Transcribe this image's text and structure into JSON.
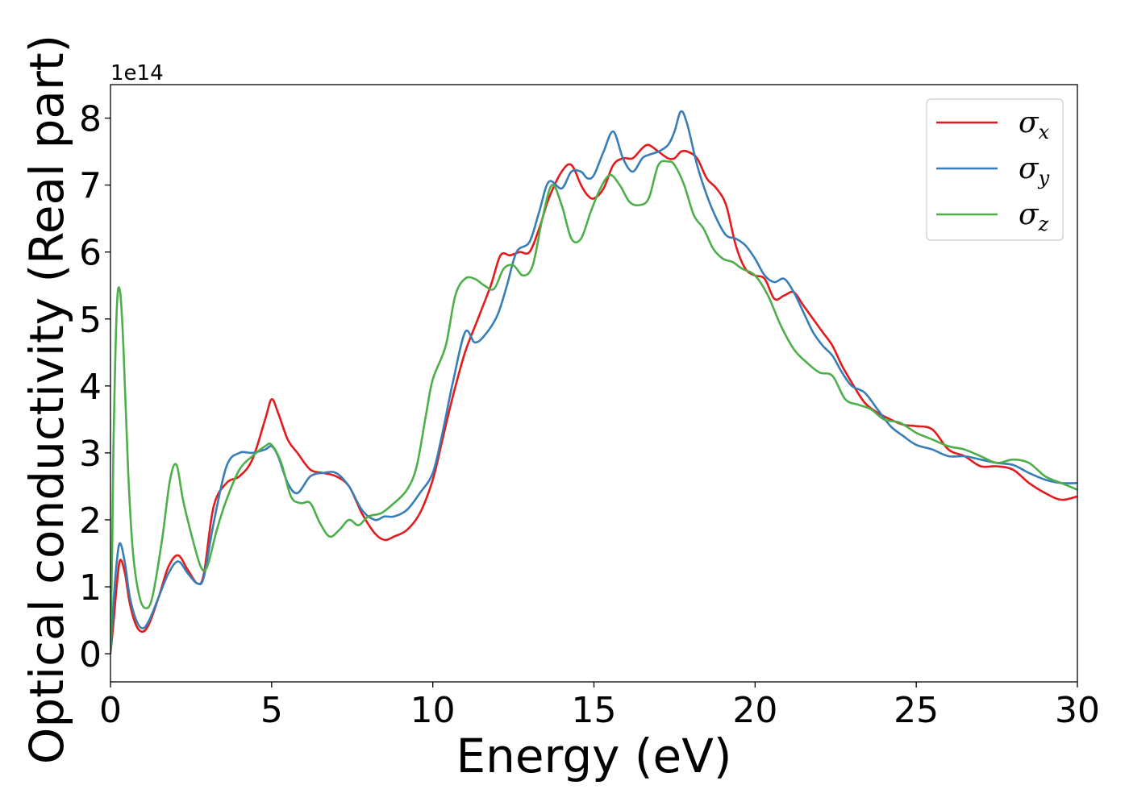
{
  "chart_data": {
    "type": "line",
    "title": "",
    "xlabel": "Energy (eV)",
    "ylabel": "Optical conductivity (Real part)",
    "y_offset_label": "1e14",
    "y_unit_scale": 100000000000000.0,
    "xlim": [
      0,
      30
    ],
    "ylim": [
      -0.42,
      8.5
    ],
    "xticks": [
      0,
      5,
      10,
      15,
      20,
      25,
      30
    ],
    "yticks": [
      0,
      1,
      2,
      3,
      4,
      5,
      6,
      7,
      8
    ],
    "grid": false,
    "legend_position": "top-right",
    "series": [
      {
        "name": "σ",
        "subscript": "x",
        "color": "#e41a1c",
        "x": [
          0,
          0.1,
          0.2,
          0.3,
          0.45,
          0.6,
          0.8,
          1.0,
          1.2,
          1.5,
          1.8,
          2.1,
          2.4,
          2.7,
          2.9,
          3.2,
          3.6,
          4.0,
          4.4,
          4.8,
          5.0,
          5.2,
          5.5,
          5.8,
          6.2,
          6.6,
          7.0,
          7.4,
          7.8,
          8.2,
          8.5,
          8.8,
          9.2,
          9.6,
          10.0,
          10.3,
          10.6,
          11.0,
          11.4,
          11.8,
          12.1,
          12.4,
          12.7,
          13.0,
          13.3,
          13.6,
          14.0,
          14.3,
          14.6,
          14.8,
          15.0,
          15.3,
          15.6,
          15.9,
          16.2,
          16.5,
          16.7,
          17.0,
          17.3,
          17.5,
          17.7,
          17.9,
          18.2,
          18.5,
          18.8,
          19.1,
          19.4,
          19.7,
          20.0,
          20.3,
          20.6,
          20.9,
          21.2,
          21.5,
          21.8,
          22.1,
          22.4,
          22.7,
          23.0,
          23.4,
          23.8,
          24.2,
          24.6,
          25.0,
          25.5,
          26.0,
          26.5,
          27.0,
          27.5,
          28.0,
          28.5,
          29.0,
          29.5,
          30.0
        ],
        "y": [
          0,
          0.5,
          1.05,
          1.4,
          1.2,
          0.75,
          0.42,
          0.33,
          0.45,
          0.85,
          1.3,
          1.47,
          1.25,
          1.05,
          1.2,
          2.2,
          2.55,
          2.65,
          2.9,
          3.5,
          3.8,
          3.6,
          3.2,
          3.0,
          2.75,
          2.7,
          2.65,
          2.5,
          2.1,
          1.8,
          1.7,
          1.75,
          1.85,
          2.1,
          2.6,
          3.2,
          3.8,
          4.5,
          5.0,
          5.5,
          5.95,
          5.95,
          6.0,
          6.0,
          6.35,
          6.8,
          7.2,
          7.3,
          7.0,
          6.85,
          6.8,
          6.95,
          7.3,
          7.4,
          7.4,
          7.55,
          7.6,
          7.5,
          7.4,
          7.4,
          7.5,
          7.5,
          7.4,
          7.1,
          6.95,
          6.7,
          6.1,
          5.75,
          5.65,
          5.6,
          5.3,
          5.35,
          5.4,
          5.2,
          5.0,
          4.8,
          4.6,
          4.3,
          4.05,
          3.75,
          3.6,
          3.5,
          3.42,
          3.4,
          3.35,
          3.05,
          2.95,
          2.8,
          2.8,
          2.75,
          2.55,
          2.4,
          2.3,
          2.35
        ]
      },
      {
        "name": "σ",
        "subscript": "y",
        "color": "#377eb8",
        "x": [
          0,
          0.1,
          0.2,
          0.3,
          0.45,
          0.6,
          0.8,
          1.0,
          1.2,
          1.5,
          1.8,
          2.1,
          2.4,
          2.7,
          2.9,
          3.2,
          3.6,
          4.0,
          4.4,
          4.8,
          5.0,
          5.2,
          5.5,
          5.8,
          6.2,
          6.6,
          7.0,
          7.4,
          7.8,
          8.2,
          8.5,
          8.8,
          9.2,
          9.6,
          10.0,
          10.3,
          10.6,
          11.0,
          11.3,
          11.6,
          12.0,
          12.3,
          12.6,
          13.0,
          13.3,
          13.6,
          14.0,
          14.3,
          14.6,
          14.8,
          15.0,
          15.3,
          15.6,
          15.9,
          16.2,
          16.5,
          16.7,
          17.0,
          17.3,
          17.5,
          17.7,
          17.9,
          18.2,
          18.5,
          18.8,
          19.1,
          19.4,
          19.7,
          20.0,
          20.3,
          20.6,
          20.9,
          21.2,
          21.5,
          21.8,
          22.1,
          22.4,
          22.7,
          23.0,
          23.4,
          23.8,
          24.2,
          24.6,
          25.0,
          25.5,
          26.0,
          26.5,
          27.0,
          27.5,
          28.0,
          28.5,
          29.0,
          29.5,
          30.0
        ],
        "y": [
          0,
          0.8,
          1.4,
          1.65,
          1.35,
          0.85,
          0.5,
          0.38,
          0.5,
          0.85,
          1.2,
          1.38,
          1.2,
          1.05,
          1.15,
          1.95,
          2.8,
          3.0,
          3.0,
          3.05,
          3.1,
          2.95,
          2.55,
          2.4,
          2.65,
          2.7,
          2.7,
          2.5,
          2.15,
          2.0,
          2.05,
          2.05,
          2.15,
          2.4,
          2.7,
          3.3,
          4.0,
          4.8,
          4.65,
          4.75,
          5.05,
          5.5,
          6.0,
          6.15,
          6.6,
          7.05,
          6.95,
          7.2,
          7.2,
          7.1,
          7.15,
          7.5,
          7.8,
          7.4,
          7.2,
          7.4,
          7.45,
          7.5,
          7.6,
          7.8,
          8.1,
          7.9,
          7.3,
          6.85,
          6.5,
          6.25,
          6.2,
          6.1,
          5.9,
          5.65,
          5.55,
          5.6,
          5.4,
          5.1,
          4.8,
          4.6,
          4.45,
          4.2,
          4.0,
          3.9,
          3.65,
          3.4,
          3.25,
          3.12,
          3.05,
          2.95,
          2.95,
          2.9,
          2.85,
          2.82,
          2.7,
          2.6,
          2.55,
          2.55
        ]
      },
      {
        "name": "σ",
        "subscript": "z",
        "color": "#4daf4a",
        "x": [
          0,
          0.05,
          0.1,
          0.2,
          0.3,
          0.4,
          0.55,
          0.7,
          0.9,
          1.1,
          1.3,
          1.6,
          1.85,
          2.05,
          2.25,
          2.5,
          2.8,
          3.0,
          3.3,
          3.6,
          4.0,
          4.4,
          4.8,
          5.0,
          5.3,
          5.6,
          5.9,
          6.2,
          6.5,
          6.8,
          7.1,
          7.4,
          7.7,
          8.0,
          8.4,
          8.8,
          9.2,
          9.5,
          9.8,
          10.0,
          10.4,
          10.7,
          11.0,
          11.3,
          11.6,
          11.9,
          12.2,
          12.5,
          12.8,
          13.1,
          13.4,
          13.7,
          14.0,
          14.3,
          14.6,
          14.9,
          15.2,
          15.5,
          15.8,
          16.1,
          16.4,
          16.7,
          17.0,
          17.3,
          17.5,
          17.8,
          18.1,
          18.4,
          18.7,
          19.0,
          19.3,
          19.6,
          20.0,
          20.4,
          20.8,
          21.2,
          21.6,
          22.0,
          22.4,
          22.8,
          23.2,
          23.6,
          24.0,
          24.5,
          25.0,
          25.5,
          26.0,
          26.5,
          27.0,
          27.5,
          28.0,
          28.5,
          29.0,
          29.5,
          30.0
        ],
        "y": [
          0,
          1.5,
          3.3,
          5.2,
          5.4,
          4.6,
          2.7,
          1.5,
          0.85,
          0.68,
          0.85,
          1.7,
          2.6,
          2.82,
          2.3,
          1.8,
          1.3,
          1.3,
          1.85,
          2.3,
          2.75,
          2.95,
          3.1,
          3.12,
          2.85,
          2.35,
          2.25,
          2.25,
          1.95,
          1.75,
          1.85,
          2.0,
          1.92,
          2.05,
          2.1,
          2.25,
          2.45,
          2.8,
          3.6,
          4.1,
          4.6,
          5.35,
          5.6,
          5.6,
          5.5,
          5.45,
          5.75,
          5.8,
          5.65,
          5.8,
          6.5,
          7.0,
          6.7,
          6.2,
          6.2,
          6.6,
          6.95,
          7.15,
          7.0,
          6.75,
          6.7,
          6.8,
          7.3,
          7.35,
          7.3,
          7.0,
          6.55,
          6.35,
          6.05,
          5.9,
          5.85,
          5.75,
          5.65,
          5.35,
          4.9,
          4.55,
          4.35,
          4.2,
          4.15,
          3.8,
          3.72,
          3.65,
          3.5,
          3.45,
          3.3,
          3.2,
          3.1,
          3.05,
          2.95,
          2.85,
          2.9,
          2.85,
          2.65,
          2.55,
          2.45
        ]
      }
    ]
  }
}
